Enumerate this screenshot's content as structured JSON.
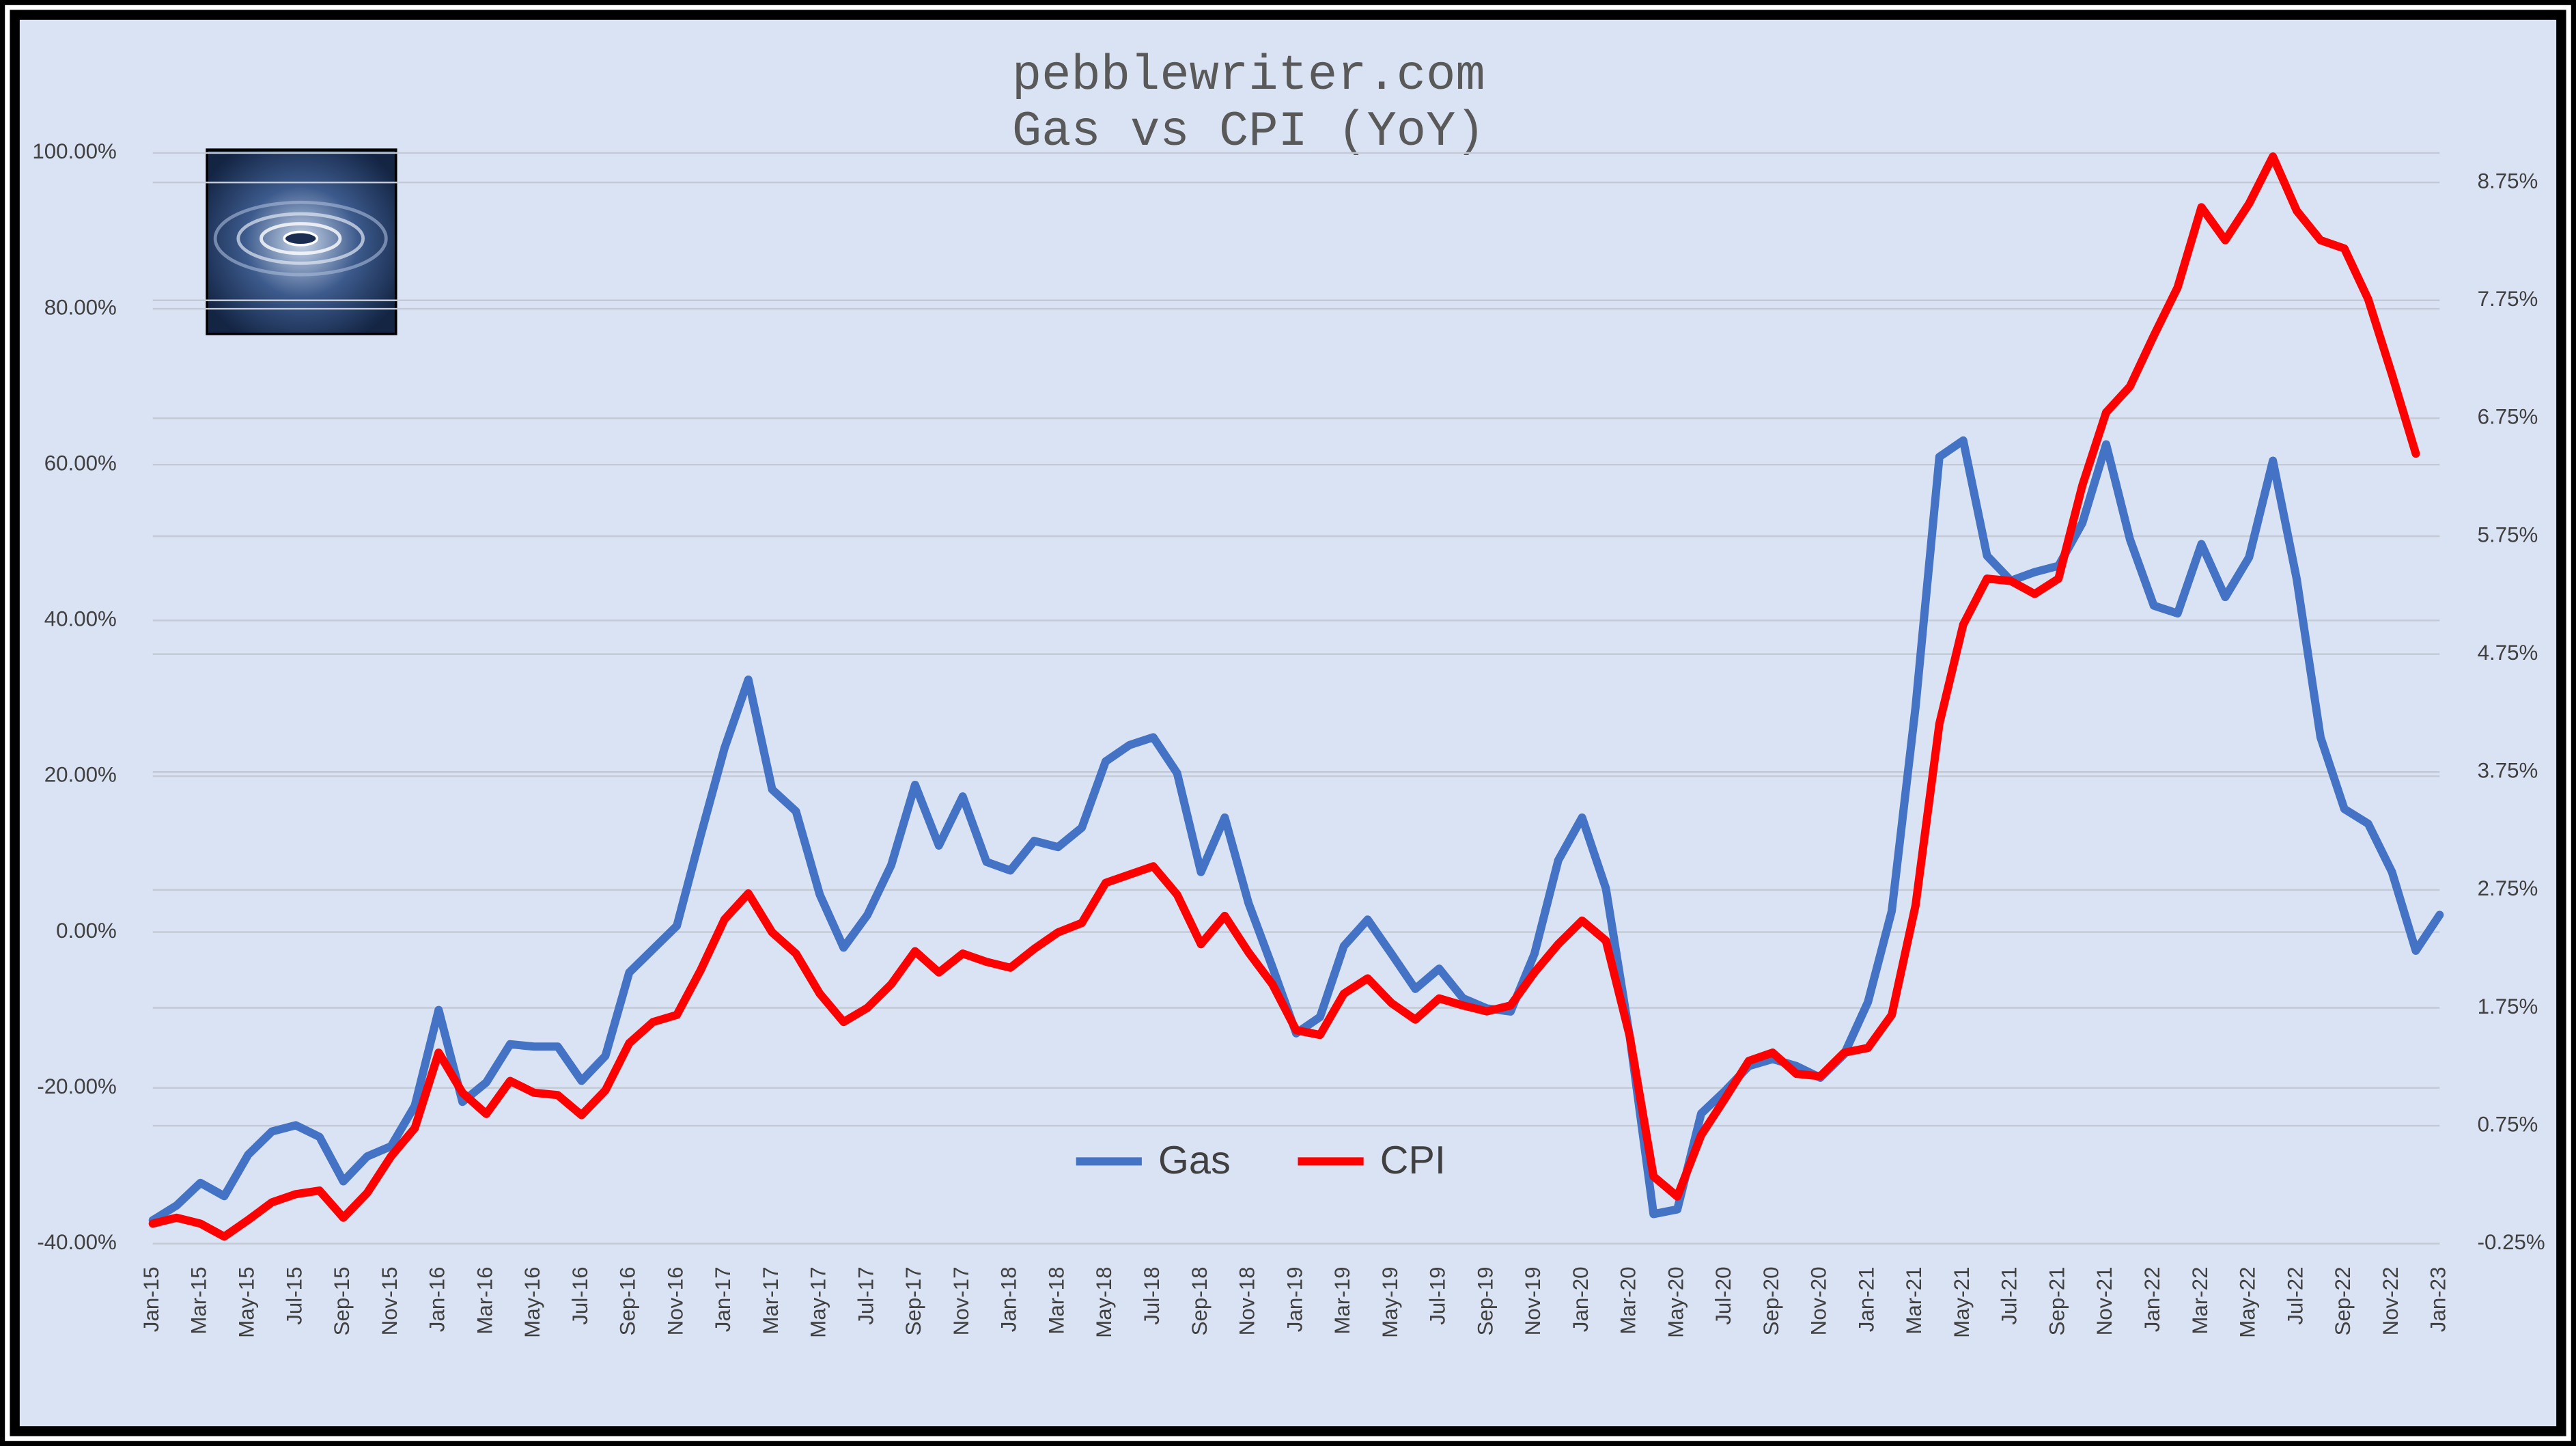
{
  "chart_data": {
    "type": "line",
    "site": "pebblewriter.com",
    "title": "Gas vs CPI (YoY)",
    "categories": [
      "Jan-15",
      null,
      "Mar-15",
      null,
      "May-15",
      null,
      "Jul-15",
      null,
      "Sep-15",
      null,
      "Nov-15",
      null,
      "Jan-16",
      null,
      "Mar-16",
      null,
      "May-16",
      null,
      "Jul-16",
      null,
      "Sep-16",
      null,
      "Nov-16",
      null,
      "Jan-17",
      null,
      "Mar-17",
      null,
      "May-17",
      null,
      "Jul-17",
      null,
      "Sep-17",
      null,
      "Nov-17",
      null,
      "Jan-18",
      null,
      "Mar-18",
      null,
      "May-18",
      null,
      "Jul-18",
      null,
      "Sep-18",
      null,
      "Nov-18",
      null,
      "Jan-19",
      null,
      "Mar-19",
      null,
      "May-19",
      null,
      "Jul-19",
      null,
      "Sep-19",
      null,
      "Nov-19",
      null,
      "Jan-20",
      null,
      "Mar-20",
      null,
      "May-20",
      null,
      "Jul-20",
      null,
      "Sep-20",
      null,
      "Nov-20",
      null,
      "Jan-21",
      null,
      "Mar-21",
      null,
      "May-21",
      null,
      "Jul-21",
      null,
      "Sep-21",
      null,
      "Nov-21",
      null,
      "Jan-22",
      null,
      "Mar-22",
      null,
      "May-22",
      null,
      "Jul-22",
      null,
      "Sep-22",
      null,
      "Nov-22",
      null,
      "Jan-23"
    ],
    "series": [
      {
        "name": "Gas",
        "color": "#4472c4",
        "values": [
          -37.0,
          -35.1,
          -32.2,
          -33.9,
          -28.6,
          -25.6,
          -24.8,
          -26.3,
          -32.0,
          -28.8,
          -27.5,
          -22.3,
          -10.0,
          -21.8,
          -19.3,
          -14.4,
          -14.7,
          -14.7,
          -19.1,
          -15.9,
          -5.2,
          -2.2,
          0.8,
          12.4,
          23.6,
          32.4,
          18.3,
          15.5,
          4.8,
          -2.0,
          2.2,
          8.6,
          18.9,
          11.1,
          17.4,
          9.0,
          7.9,
          11.7,
          10.9,
          13.4,
          21.9,
          24.0,
          25.0,
          20.4,
          7.7,
          14.7,
          3.7,
          -4.5,
          -13.0,
          -10.9,
          -1.8,
          1.6,
          -2.8,
          -7.3,
          -4.7,
          -8.5,
          -9.8,
          -10.2,
          -2.8,
          9.2,
          14.7,
          5.6,
          -13.4,
          -36.2,
          -35.6,
          -23.3,
          -20.4,
          -17.2,
          -16.3,
          -17.2,
          -18.7,
          -15.7,
          -9.0,
          2.7,
          28.9,
          61.0,
          63.1,
          48.3,
          45.1,
          46.2,
          47.0,
          52.5,
          62.6,
          50.4,
          41.9,
          40.9,
          49.8,
          43.0,
          48.1,
          60.5,
          45.3,
          25.0,
          15.8,
          13.9,
          7.7,
          -2.4,
          2.2
        ]
      },
      {
        "name": "CPI",
        "color": "#ff0000",
        "axis": "y2",
        "values": [
          -0.08,
          -0.03,
          -0.08,
          -0.19,
          -0.05,
          0.1,
          0.17,
          0.2,
          -0.03,
          0.18,
          0.49,
          0.73,
          1.37,
          1.03,
          0.85,
          1.13,
          1.03,
          1.01,
          0.84,
          1.05,
          1.45,
          1.63,
          1.69,
          2.07,
          2.5,
          2.72,
          2.39,
          2.21,
          1.87,
          1.63,
          1.75,
          1.95,
          2.23,
          2.05,
          2.21,
          2.14,
          2.09,
          2.25,
          2.39,
          2.47,
          2.81,
          2.88,
          2.95,
          2.71,
          2.29,
          2.53,
          2.22,
          1.95,
          1.56,
          1.52,
          1.87,
          2.0,
          1.79,
          1.65,
          1.83,
          1.77,
          1.72,
          1.77,
          2.05,
          2.29,
          2.49,
          2.32,
          1.51,
          0.32,
          0.15,
          0.67,
          0.98,
          1.3,
          1.37,
          1.19,
          1.17,
          1.37,
          1.41,
          1.69,
          2.62,
          4.16,
          5.0,
          5.39,
          5.37,
          5.26,
          5.39,
          6.18,
          6.8,
          7.02,
          7.45,
          7.86,
          8.54,
          8.26,
          8.57,
          8.97,
          8.51,
          8.26,
          8.19,
          7.76,
          7.12,
          6.45,
          null
        ]
      }
    ],
    "ylim": [
      -40,
      100
    ],
    "yticks": [
      {
        "value": -40,
        "label": "-40.00%"
      },
      {
        "value": -20,
        "label": "-20.00%"
      },
      {
        "value": 0,
        "label": "0.00%"
      },
      {
        "value": 20,
        "label": "20.00%"
      },
      {
        "value": 40,
        "label": "40.00%"
      },
      {
        "value": 60,
        "label": "60.00%"
      },
      {
        "value": 80,
        "label": "80.00%"
      },
      {
        "value": 100,
        "label": "100.00%"
      }
    ],
    "y2lim": [
      -0.25,
      9.0
    ],
    "y2ticks": [
      {
        "value": -0.25,
        "label": "-0.25%"
      },
      {
        "value": 0.75,
        "label": "0.75%"
      },
      {
        "value": 1.75,
        "label": "1.75%"
      },
      {
        "value": 2.75,
        "label": "2.75%"
      },
      {
        "value": 3.75,
        "label": "3.75%"
      },
      {
        "value": 4.75,
        "label": "4.75%"
      },
      {
        "value": 5.75,
        "label": "5.75%"
      },
      {
        "value": 6.75,
        "label": "6.75%"
      },
      {
        "value": 7.75,
        "label": "7.75%"
      },
      {
        "value": 8.75,
        "label": "8.75%"
      }
    ],
    "grid": true,
    "legend": "bottom-center"
  }
}
